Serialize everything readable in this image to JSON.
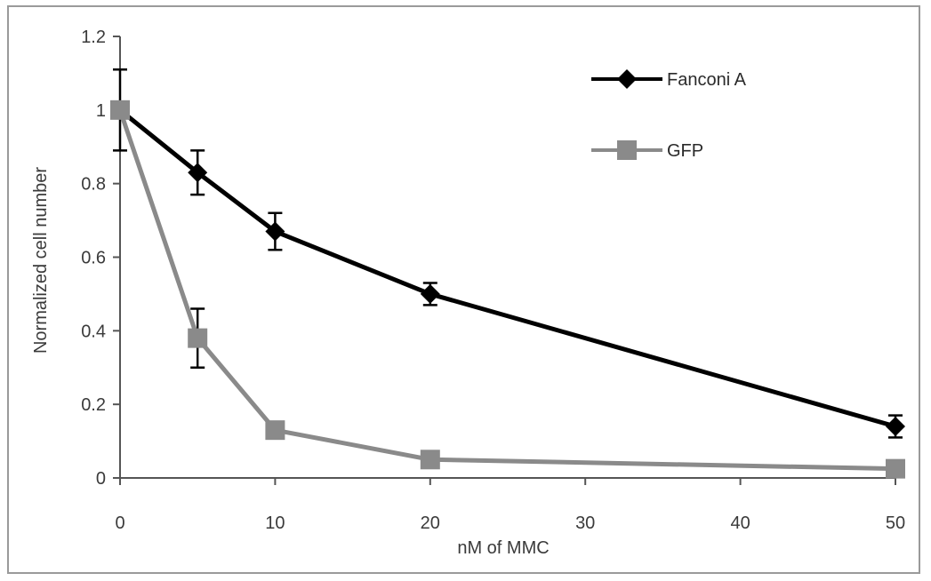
{
  "chart_data": {
    "type": "line",
    "title": "",
    "xlabel": "nM of MMC",
    "ylabel": "Normalized cell number",
    "x": [
      0,
      5,
      10,
      20,
      50
    ],
    "x_tick_labels": [
      "0",
      "10",
      "20",
      "30",
      "40",
      "50"
    ],
    "y_tick_labels": [
      "0",
      "0.2",
      "0.4",
      "0.6",
      "0.8",
      "1",
      "1.2"
    ],
    "ylim": [
      0,
      1.2
    ],
    "grid": false,
    "legend_position": "top-right",
    "series": [
      {
        "name": "Fanconi A",
        "color": "#000000",
        "marker": "diamond",
        "values": [
          1.0,
          0.83,
          0.67,
          0.5,
          0.14
        ],
        "errors": [
          0.11,
          0.06,
          0.05,
          0.03,
          0.03
        ]
      },
      {
        "name": "GFP",
        "color": "#8a8a8a",
        "marker": "square",
        "values": [
          1.0,
          0.38,
          0.13,
          0.05,
          0.025
        ],
        "errors": [
          0.0,
          0.08,
          0.0,
          0.0,
          0.0
        ]
      }
    ]
  }
}
